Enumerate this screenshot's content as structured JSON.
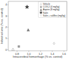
{
  "chart_data": {
    "type": "scatter",
    "xlabel": "Intracerebral hemorrhage (% vs. control)",
    "ylabel": "Infarct volume (% vs. control)",
    "xlim": [
      0.65,
      1.65
    ],
    "ylim": [
      -0.1,
      4.3
    ],
    "xticks": [
      0.8,
      {
        "value": 1.0,
        "label": "1.0"
      },
      1.2,
      1.4,
      1.6
    ],
    "yticks": [
      0,
      1,
      2,
      3,
      4
    ],
    "legend": "upper-right",
    "series": [
      {
        "name": "Vehicle",
        "color": "#999999",
        "marker": "triangle-open",
        "x": [
          0.73
        ],
        "values": [
          0.02
        ]
      },
      {
        "name": "COX-2 (4 mg/kg)",
        "color": "#999999",
        "marker": "square",
        "x": [
          0.83
        ],
        "values": [
          0.28
        ]
      },
      {
        "name": "Aspirin (8 mg/kg)",
        "color": "#777777",
        "marker": "triangle",
        "x": [
          0.99
        ],
        "values": [
          1.75
        ]
      },
      {
        "name": "Salin",
        "color": "#333333",
        "marker": "star",
        "x": [
          0.97
        ],
        "values": [
          3.8
        ]
      },
      {
        "name": "Salin + sali8ex (mg/kg)",
        "color": "#999999",
        "marker": "diamond-open",
        "x": [
          1.43
        ],
        "values": [
          0.55
        ]
      }
    ]
  }
}
